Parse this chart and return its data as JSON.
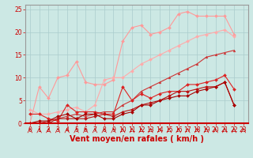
{
  "background_color": "#cce8e4",
  "grid_color": "#aacccc",
  "xlabel": "Vent moyen/en rafales ( km/h )",
  "xlabel_color": "#cc0000",
  "xlabel_fontsize": 7,
  "xlim": [
    -0.5,
    23.5
  ],
  "ylim": [
    0,
    26
  ],
  "yticks": [
    0,
    5,
    10,
    15,
    20,
    25
  ],
  "xticks": [
    0,
    1,
    2,
    3,
    4,
    5,
    6,
    7,
    8,
    9,
    10,
    11,
    12,
    13,
    14,
    15,
    16,
    17,
    18,
    19,
    20,
    21,
    22,
    23
  ],
  "tick_color": "#cc0000",
  "tick_fontsize": 5.5,
  "series": [
    {
      "x": [
        0,
        1,
        2,
        3,
        4,
        5,
        6,
        7,
        8,
        9,
        10,
        11,
        12,
        13,
        14,
        15,
        16,
        17,
        18,
        19,
        20,
        21,
        22,
        23
      ],
      "y": [
        0,
        8,
        5.5,
        10,
        10.5,
        13.5,
        9,
        8.5,
        8.5,
        9.5,
        18,
        21,
        21.5,
        19.5,
        20,
        21,
        24,
        24.5,
        23.5,
        23.5,
        23.5,
        23.5,
        19.5,
        null
      ],
      "color": "#ff9999",
      "marker": "D",
      "markersize": 2.0,
      "linewidth": 0.8
    },
    {
      "x": [
        0,
        1,
        2,
        3,
        4,
        5,
        6,
        7,
        8,
        9,
        10,
        11,
        12,
        13,
        14,
        15,
        16,
        17,
        18,
        19,
        20,
        21,
        22,
        23
      ],
      "y": [
        3,
        2,
        2,
        2.5,
        3,
        3.5,
        2.5,
        4,
        9.5,
        10,
        10,
        11.5,
        13,
        14,
        15,
        16,
        17,
        18,
        19,
        19.5,
        20,
        20.5,
        19,
        null
      ],
      "color": "#ffaaaa",
      "marker": "D",
      "markersize": 2.0,
      "linewidth": 0.8
    },
    {
      "x": [
        0,
        1,
        2,
        3,
        4,
        5,
        6,
        7,
        8,
        9,
        10,
        11,
        12,
        13,
        14,
        15,
        16,
        17,
        18,
        19,
        20,
        21,
        22,
        23
      ],
      "y": [
        0,
        0,
        0.5,
        1,
        1.5,
        2,
        1.5,
        2,
        2.5,
        2.5,
        4,
        5,
        7,
        8,
        9,
        10,
        11,
        12,
        13,
        14.5,
        15,
        15.5,
        16,
        null
      ],
      "color": "#cc3333",
      "marker": "^",
      "markersize": 2.0,
      "linewidth": 0.8
    },
    {
      "x": [
        0,
        1,
        2,
        3,
        4,
        5,
        6,
        7,
        8,
        9,
        10,
        11,
        12,
        13,
        14,
        15,
        16,
        17,
        18,
        19,
        20,
        21,
        22,
        23
      ],
      "y": [
        2,
        2,
        1,
        0.5,
        4,
        2.5,
        2.5,
        2.5,
        2,
        2,
        8,
        5,
        6.5,
        5.5,
        6.5,
        7,
        7,
        8.5,
        8.5,
        9,
        9.5,
        10.5,
        7.5,
        null
      ],
      "color": "#dd2222",
      "marker": "D",
      "markersize": 2.0,
      "linewidth": 0.8
    },
    {
      "x": [
        0,
        1,
        2,
        3,
        4,
        5,
        6,
        7,
        8,
        9,
        10,
        11,
        12,
        13,
        14,
        15,
        16,
        17,
        18,
        19,
        20,
        21,
        22,
        23
      ],
      "y": [
        0,
        0,
        0,
        1,
        1,
        1,
        1,
        1.5,
        2,
        1.5,
        2.5,
        3,
        4,
        4.5,
        5,
        6,
        7,
        7,
        7.5,
        8,
        8,
        9,
        4,
        null
      ],
      "color": "#bb1111",
      "marker": "D",
      "markersize": 2.0,
      "linewidth": 0.8
    },
    {
      "x": [
        0,
        1,
        2,
        3,
        4,
        5,
        6,
        7,
        8,
        9,
        10,
        11,
        12,
        13,
        14,
        15,
        16,
        17,
        18,
        19,
        20,
        21,
        22,
        23
      ],
      "y": [
        0,
        0.5,
        0.5,
        1.5,
        2,
        1,
        2,
        2,
        1,
        1,
        2,
        2.5,
        4,
        4,
        5,
        5.5,
        6,
        6,
        7,
        7.5,
        8,
        9,
        4,
        null
      ],
      "color": "#aa0000",
      "marker": "D",
      "markersize": 2.0,
      "linewidth": 0.8
    }
  ]
}
